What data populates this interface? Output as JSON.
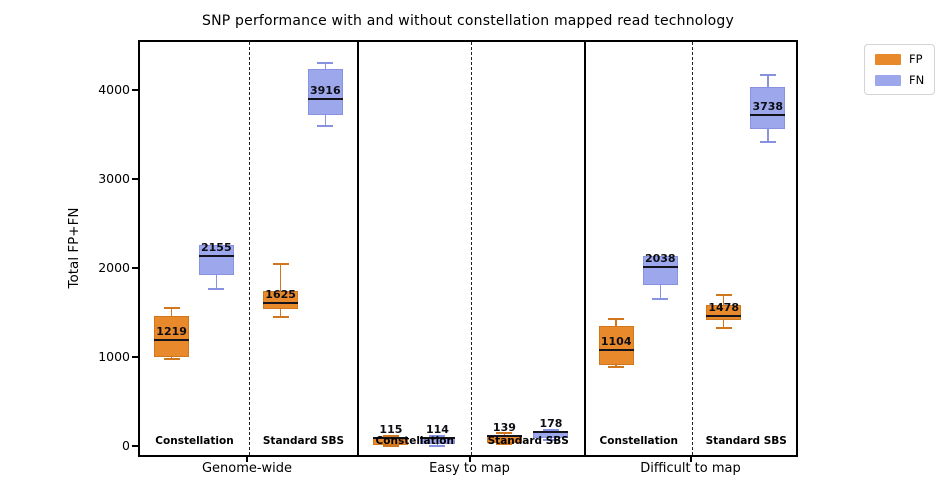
{
  "chart_data": {
    "type": "boxplot",
    "title": "SNP performance with and without constellation mapped read technology",
    "ylabel": "Total FP+FN",
    "xlabel": "",
    "yticks": [
      0,
      1000,
      2000,
      3000,
      4000
    ],
    "ylim": [
      -125,
      4560
    ],
    "grid": false,
    "legend_position": "upper right, outside axes",
    "legend": [
      {
        "label": "FP",
        "color": "#e8892b",
        "edge": "#d0761c"
      },
      {
        "label": "FN",
        "color": "#9da8ec",
        "edge": "#8793e0"
      }
    ],
    "panels": [
      {
        "label": "Genome-wide",
        "groups": [
          {
            "label": "Constellation",
            "boxes": [
              {
                "series": "FP",
                "label": "1219",
                "median": 1219,
                "q1": 1025,
                "q3": 1480,
                "lo": 1000,
                "hi": 1575
              },
              {
                "series": "FN",
                "label": "2155",
                "median": 2155,
                "q1": 1945,
                "q3": 2280,
                "lo": 1785,
                "hi": 2280
              }
            ]
          },
          {
            "label": "Standard SBS",
            "boxes": [
              {
                "series": "FP",
                "label": "1625",
                "median": 1625,
                "q1": 1565,
                "q3": 1760,
                "lo": 1470,
                "hi": 2070
              },
              {
                "series": "FN",
                "label": "3916",
                "median": 3916,
                "q1": 3745,
                "q3": 4255,
                "lo": 3620,
                "hi": 4330
              }
            ]
          }
        ]
      },
      {
        "label": "Easy to map",
        "groups": [
          {
            "label": "Constellation",
            "boxes": [
              {
                "series": "FP",
                "label": "115",
                "median": 115,
                "q1": 35,
                "q3": 125,
                "lo": 20,
                "hi": 140
              },
              {
                "series": "FN",
                "label": "114",
                "median": 114,
                "q1": 40,
                "q3": 122,
                "lo": 25,
                "hi": 135
              }
            ]
          },
          {
            "label": "Standard SBS",
            "boxes": [
              {
                "series": "FP",
                "label": "139",
                "median": 139,
                "q1": 55,
                "q3": 150,
                "lo": 40,
                "hi": 165
              },
              {
                "series": "FN",
                "label": "178",
                "median": 178,
                "q1": 110,
                "q3": 190,
                "lo": 90,
                "hi": 205
              }
            ]
          }
        ]
      },
      {
        "label": "Difficult to map",
        "groups": [
          {
            "label": "Constellation",
            "boxes": [
              {
                "series": "FP",
                "label": "1104",
                "median": 1104,
                "q1": 935,
                "q3": 1370,
                "lo": 910,
                "hi": 1450
              },
              {
                "series": "FN",
                "label": "2038",
                "median": 2038,
                "q1": 1830,
                "q3": 2155,
                "lo": 1675,
                "hi": 2155
              }
            ]
          },
          {
            "label": "Standard SBS",
            "boxes": [
              {
                "series": "FP",
                "label": "1478",
                "median": 1478,
                "q1": 1440,
                "q3": 1605,
                "lo": 1350,
                "hi": 1720
              },
              {
                "series": "FN",
                "label": "3738",
                "median": 3738,
                "q1": 3585,
                "q3": 4055,
                "lo": 3440,
                "hi": 4190
              }
            ]
          }
        ]
      }
    ]
  }
}
